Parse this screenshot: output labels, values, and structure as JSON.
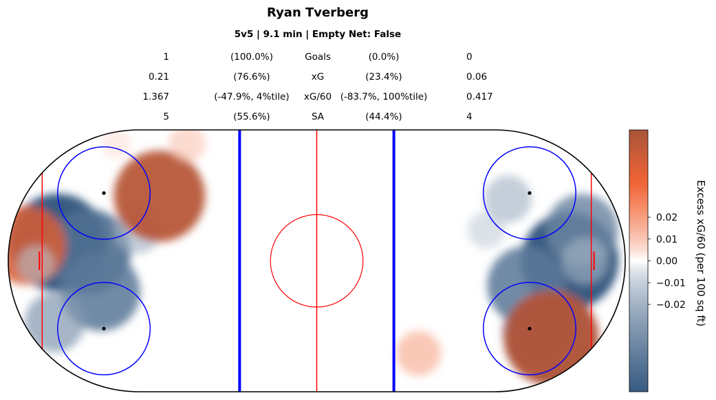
{
  "title": "Ryan Tverberg",
  "subtitle": "5v5 | 9.1 min | Empty Net: False",
  "stats": [
    {
      "left_value": "1",
      "left_pct": "(100.0%)",
      "label": "Goals",
      "right_pct": "(0.0%)",
      "right_value": "0"
    },
    {
      "left_value": "0.21",
      "left_pct": "(76.6%)",
      "label": "xG",
      "right_pct": "(23.4%)",
      "right_value": "0.06"
    },
    {
      "left_value": "1.367",
      "left_pct": "(-47.9%, 4%tile)",
      "label": "xG/60",
      "right_pct": "(-83.7%, 100%tile)",
      "right_value": "0.417"
    },
    {
      "left_value": "5",
      "left_pct": "(55.6%)",
      "label": "SA",
      "right_pct": "(44.4%)",
      "right_value": "4"
    }
  ],
  "chart_data": {
    "type": "heatmap",
    "x_range_ft": [
      -100,
      100
    ],
    "y_range_ft": [
      -42.5,
      42.5
    ],
    "colorbar": {
      "label": "Excess xG/60 (per 100 sq ft)",
      "ticks": [
        0.02,
        0.01,
        0.0,
        -0.01,
        -0.02
      ],
      "tick_labels": [
        "0.02",
        "0.01",
        "0.00",
        "−0.01",
        "−0.02"
      ],
      "vmin": -0.06,
      "vmax": 0.06,
      "colors": {
        "negative": "#385b82",
        "zero": "#ffffff",
        "positive": "#a9553a"
      }
    },
    "rink_colors": {
      "blue_line": "#0000ff",
      "red_line": "#ff0000",
      "boards": "#000000",
      "circle": "#0000ff",
      "center_circle": "#ff0000"
    },
    "blobs": [
      {
        "x": -84,
        "y": 6,
        "value": -0.06
      },
      {
        "x": -74,
        "y": 3,
        "value": -0.05
      },
      {
        "x": -70,
        "y": -10,
        "value": -0.045
      },
      {
        "x": -85,
        "y": -20,
        "value": -0.03
      },
      {
        "x": -58,
        "y": 10,
        "value": -0.02
      },
      {
        "x": -94,
        "y": 5,
        "value": 0.045
      },
      {
        "x": -91,
        "y": -1,
        "value": -0.012
      },
      {
        "x": -51,
        "y": 21,
        "value": 0.055
      },
      {
        "x": -42,
        "y": 38,
        "value": 0.012
      },
      {
        "x": -65,
        "y": 38,
        "value": 0.006
      },
      {
        "x": 82,
        "y": 0,
        "value": -0.06
      },
      {
        "x": 86,
        "y": 10,
        "value": -0.04
      },
      {
        "x": 68,
        "y": -8,
        "value": -0.045
      },
      {
        "x": 72,
        "y": -23,
        "value": -0.04
      },
      {
        "x": 62,
        "y": 20,
        "value": -0.02
      },
      {
        "x": 87,
        "y": 0,
        "value": -0.02
      },
      {
        "x": 76,
        "y": -25,
        "value": 0.058
      },
      {
        "x": 33,
        "y": -30,
        "value": 0.018
      },
      {
        "x": 55,
        "y": 10,
        "value": -0.012
      }
    ]
  }
}
